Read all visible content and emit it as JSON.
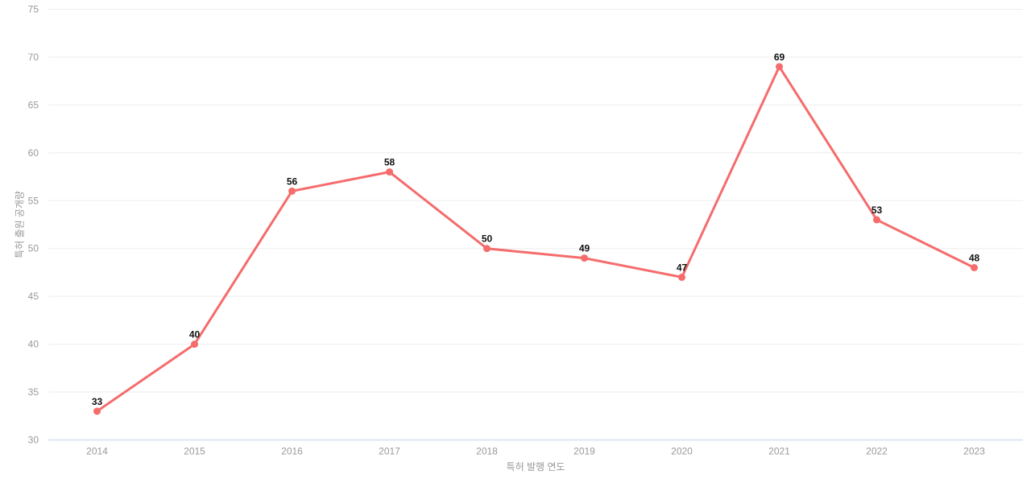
{
  "chart_data": {
    "type": "line",
    "title": "",
    "xlabel": "특허 발행 연도",
    "ylabel": "특허 출원 공개량",
    "categories": [
      "2014",
      "2015",
      "2016",
      "2017",
      "2018",
      "2019",
      "2020",
      "2021",
      "2022",
      "2023"
    ],
    "values": [
      33,
      40,
      56,
      58,
      50,
      49,
      47,
      69,
      53,
      48
    ],
    "value_labels": [
      "33",
      "40",
      "56",
      "58",
      "50",
      "49",
      "47",
      "69",
      "53",
      "48"
    ],
    "ylim": [
      30,
      75
    ],
    "ytick_step": 5,
    "ytick_labels": [
      "30",
      "35",
      "40",
      "45",
      "50",
      "55",
      "60",
      "65",
      "70",
      "75"
    ],
    "grid": true,
    "legend_position": "none",
    "colors": {
      "line": "#f56c6c",
      "marker": "#f56c6c",
      "grid_line": "#eeeeee",
      "axis_line": "#e0e6f1",
      "tick_label": "#999999",
      "axis_title": "#999999",
      "value_label": "#111111",
      "background": "#ffffff"
    }
  }
}
